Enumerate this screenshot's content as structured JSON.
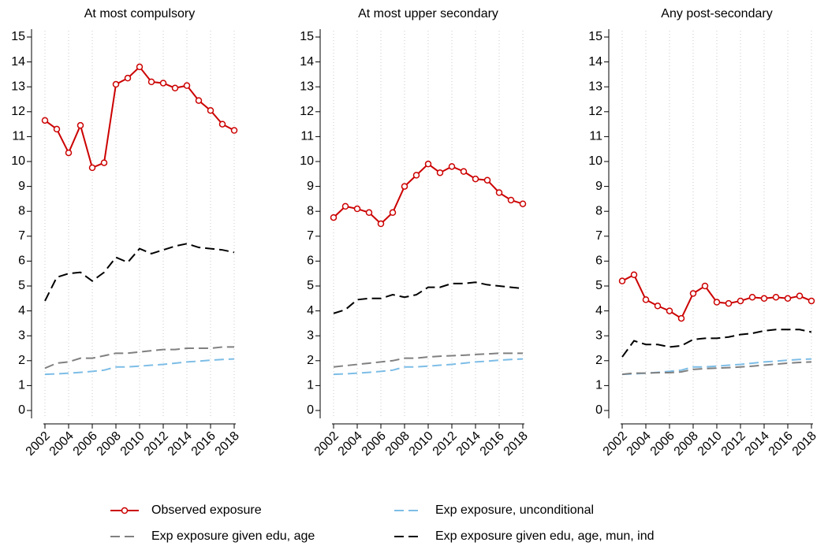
{
  "chart_data": [
    {
      "type": "line",
      "title": "At most compulsory",
      "x": [
        2002,
        2003,
        2004,
        2005,
        2006,
        2007,
        2008,
        2009,
        2010,
        2011,
        2012,
        2013,
        2014,
        2015,
        2016,
        2017,
        2018
      ],
      "xlim": [
        2001,
        2019
      ],
      "xticks": [
        2002,
        2004,
        2006,
        2008,
        2010,
        2012,
        2014,
        2016,
        2018
      ],
      "ylim": [
        0,
        15
      ],
      "yticks": [
        0,
        1,
        2,
        3,
        4,
        5,
        6,
        7,
        8,
        9,
        10,
        11,
        12,
        13,
        14,
        15
      ],
      "grid": true,
      "series": [
        {
          "name": "Observed exposure",
          "color": "#cc0000",
          "style": "solid",
          "marker": "circle",
          "values": [
            11.65,
            11.3,
            10.35,
            11.45,
            9.75,
            9.95,
            13.1,
            13.35,
            13.8,
            13.2,
            13.15,
            12.95,
            13.05,
            12.45,
            12.05,
            11.5,
            11.25
          ]
        },
        {
          "name": "Exp exposure, unconditional",
          "color": "#7dbde6",
          "style": "dashed",
          "values": [
            1.45,
            1.47,
            1.5,
            1.53,
            1.57,
            1.62,
            1.75,
            1.75,
            1.78,
            1.82,
            1.85,
            1.9,
            1.95,
            1.98,
            2.02,
            2.05,
            2.07
          ]
        },
        {
          "name": "Exp exposure given edu, age",
          "color": "#808080",
          "style": "dashed",
          "values": [
            1.7,
            1.9,
            1.95,
            2.1,
            2.1,
            2.2,
            2.3,
            2.3,
            2.35,
            2.4,
            2.45,
            2.45,
            2.5,
            2.5,
            2.5,
            2.55,
            2.55
          ]
        },
        {
          "name": "Exp exposure given edu, age, mun, ind",
          "color": "#000000",
          "style": "dashed",
          "values": [
            4.4,
            5.35,
            5.5,
            5.55,
            5.2,
            5.55,
            6.15,
            5.95,
            6.5,
            6.3,
            6.45,
            6.6,
            6.7,
            6.55,
            6.5,
            6.45,
            6.35
          ]
        }
      ]
    },
    {
      "type": "line",
      "title": "At most upper secondary",
      "x": [
        2002,
        2003,
        2004,
        2005,
        2006,
        2007,
        2008,
        2009,
        2010,
        2011,
        2012,
        2013,
        2014,
        2015,
        2016,
        2017,
        2018
      ],
      "xlim": [
        2001,
        2019
      ],
      "xticks": [
        2002,
        2004,
        2006,
        2008,
        2010,
        2012,
        2014,
        2016,
        2018
      ],
      "ylim": [
        0,
        15
      ],
      "yticks": [
        0,
        1,
        2,
        3,
        4,
        5,
        6,
        7,
        8,
        9,
        10,
        11,
        12,
        13,
        14,
        15
      ],
      "grid": true,
      "series": [
        {
          "color": "#cc0000",
          "style": "solid",
          "marker": "circle",
          "values": [
            7.75,
            8.2,
            8.1,
            7.95,
            7.5,
            7.95,
            9.0,
            9.45,
            9.9,
            9.55,
            9.8,
            9.6,
            9.3,
            9.25,
            8.75,
            8.45,
            8.3
          ]
        },
        {
          "color": "#7dbde6",
          "style": "dashed",
          "values": [
            1.45,
            1.47,
            1.5,
            1.53,
            1.57,
            1.62,
            1.75,
            1.75,
            1.78,
            1.82,
            1.85,
            1.9,
            1.95,
            1.98,
            2.02,
            2.05,
            2.07
          ]
        },
        {
          "color": "#808080",
          "style": "dashed",
          "values": [
            1.75,
            1.8,
            1.85,
            1.9,
            1.95,
            2.0,
            2.1,
            2.1,
            2.15,
            2.18,
            2.2,
            2.22,
            2.25,
            2.27,
            2.3,
            2.3,
            2.3
          ]
        },
        {
          "color": "#000000",
          "style": "dashed",
          "values": [
            3.9,
            4.05,
            4.45,
            4.5,
            4.5,
            4.65,
            4.55,
            4.65,
            4.95,
            4.95,
            5.1,
            5.1,
            5.15,
            5.05,
            5.0,
            4.95,
            4.9
          ]
        }
      ]
    },
    {
      "type": "line",
      "title": "Any post-secondary",
      "x": [
        2002,
        2003,
        2004,
        2005,
        2006,
        2007,
        2008,
        2009,
        2010,
        2011,
        2012,
        2013,
        2014,
        2015,
        2016,
        2017,
        2018
      ],
      "xlim": [
        2001,
        2019
      ],
      "xticks": [
        2002,
        2004,
        2006,
        2008,
        2010,
        2012,
        2014,
        2016,
        2018
      ],
      "ylim": [
        0,
        15
      ],
      "yticks": [
        0,
        1,
        2,
        3,
        4,
        5,
        6,
        7,
        8,
        9,
        10,
        11,
        12,
        13,
        14,
        15
      ],
      "grid": true,
      "series": [
        {
          "color": "#cc0000",
          "style": "solid",
          "marker": "circle",
          "values": [
            5.2,
            5.45,
            4.45,
            4.2,
            4.0,
            3.7,
            4.7,
            5.0,
            4.35,
            4.3,
            4.4,
            4.55,
            4.5,
            4.55,
            4.5,
            4.6,
            4.4
          ]
        },
        {
          "color": "#7dbde6",
          "style": "dashed",
          "values": [
            1.45,
            1.47,
            1.5,
            1.53,
            1.57,
            1.62,
            1.75,
            1.75,
            1.78,
            1.82,
            1.85,
            1.9,
            1.95,
            1.98,
            2.02,
            2.05,
            2.07
          ]
        },
        {
          "color": "#808080",
          "style": "dashed",
          "values": [
            1.45,
            1.5,
            1.5,
            1.52,
            1.52,
            1.55,
            1.65,
            1.68,
            1.7,
            1.72,
            1.75,
            1.78,
            1.82,
            1.86,
            1.9,
            1.93,
            1.95
          ]
        },
        {
          "color": "#000000",
          "style": "dashed",
          "values": [
            2.15,
            2.8,
            2.65,
            2.65,
            2.55,
            2.6,
            2.85,
            2.9,
            2.9,
            2.95,
            3.05,
            3.1,
            3.2,
            3.25,
            3.25,
            3.25,
            3.15
          ]
        }
      ]
    }
  ]
}
